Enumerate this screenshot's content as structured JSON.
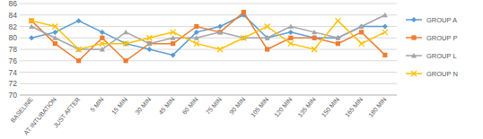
{
  "chart_data": {
    "type": "line",
    "categories": [
      "BASELINE",
      "AT INTUBATION",
      "JUST AFTER",
      "5 MIN",
      "15 MIN",
      "30 MIN",
      "45 MIN",
      "60 MIN",
      "75 MIN",
      "90 MIN",
      "105 MIN",
      "120 MIN",
      "135 MIN",
      "150 MIN",
      "165 MIN",
      "180 MIN"
    ],
    "series": [
      {
        "name": "GROUP A",
        "color": "#5b9bd5",
        "marker": "diamond",
        "values": [
          80,
          81,
          83,
          81,
          79,
          78,
          77,
          81,
          82,
          84,
          80,
          81,
          80,
          80,
          82,
          82
        ]
      },
      {
        "name": "GROUP P",
        "color": "#ed7d31",
        "marker": "square",
        "values": [
          83,
          79,
          76,
          80,
          76,
          79,
          79,
          82,
          81,
          84.5,
          78,
          80,
          80,
          79,
          81,
          77
        ]
      },
      {
        "name": "GROUP L",
        "color": "#a5a5a5",
        "marker": "triangle",
        "values": [
          82,
          80,
          78,
          78,
          81,
          79,
          80,
          80,
          81,
          80,
          80,
          82,
          81,
          80,
          82,
          84
        ]
      },
      {
        "name": "GROUP N",
        "color": "#ffc000",
        "marker": "x",
        "values": [
          83,
          82,
          78,
          79,
          79,
          80,
          81,
          79,
          78,
          80,
          82,
          79,
          78,
          83,
          79,
          81
        ]
      }
    ],
    "ylim": [
      70,
      86
    ],
    "yticks": [
      70,
      72,
      74,
      76,
      78,
      80,
      82,
      84,
      86
    ],
    "grid": true,
    "legend": "right"
  }
}
